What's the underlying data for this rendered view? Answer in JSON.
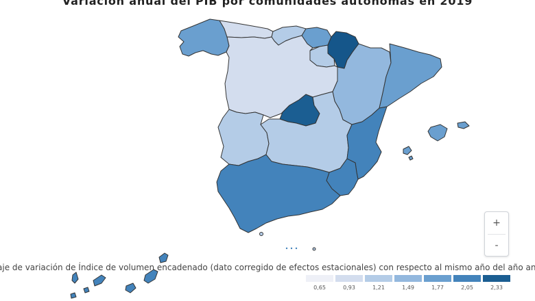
{
  "title": "Variación anual del PIB por comunidades autónomas en 2019",
  "legend": {
    "title": "aje de variación de Índice de volumen encadenado (dato corregido de efectos estacionales) con respecto al mismo año del año anterior",
    "ticks": [
      "0,65",
      "0,93",
      "1,21",
      "1,49",
      "1,77",
      "2,05",
      "2,33"
    ],
    "colors": [
      "#eef0f7",
      "#d3ddee",
      "#b4cce7",
      "#93b8de",
      "#6a9fcf",
      "#4383bb",
      "#1b5e92"
    ]
  },
  "zoom": {
    "in": "+",
    "out": "-"
  },
  "colors": {
    "navarra": "#15568a",
    "madrid": "#1b5e92",
    "light": "#d3ddee"
  }
}
